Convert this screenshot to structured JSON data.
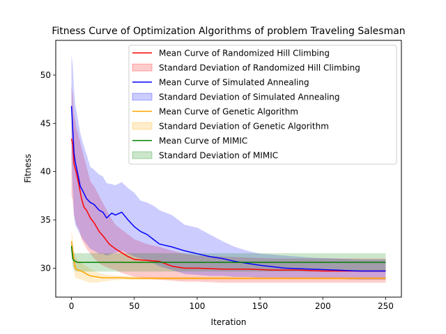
{
  "chart_data": {
    "type": "line",
    "title": "Fitness Curve of Optimization Algorithms of problem Traveling Salesman",
    "xlabel": "Iteration",
    "ylabel": "Fitness",
    "xlim": [
      -12.5,
      262.5
    ],
    "ylim": [
      27.0,
      53.6
    ],
    "xticks": [
      0,
      50,
      100,
      150,
      200,
      250
    ],
    "yticks": [
      30,
      35,
      40,
      45,
      50
    ],
    "grid": false,
    "legend_position": "top-right",
    "series": [
      {
        "name": "Mean Curve of Randomized Hill Climbing",
        "band_name": "Standard Deviation of Randomized Hill Climbing",
        "color": "#ff0000",
        "x": [
          0,
          1,
          2,
          4,
          6,
          8,
          10,
          12,
          15,
          18,
          22,
          26,
          30,
          35,
          40,
          45,
          50,
          60,
          70,
          80,
          90,
          100,
          120,
          140,
          160,
          180,
          200,
          220,
          250
        ],
        "mean": [
          43.4,
          42.8,
          40.8,
          39.8,
          38.6,
          37.2,
          36.3,
          36.0,
          35.2,
          34.7,
          33.8,
          33.2,
          32.5,
          32.0,
          31.6,
          31.2,
          30.9,
          30.8,
          30.7,
          30.2,
          30.0,
          30.0,
          29.9,
          29.9,
          29.8,
          29.8,
          29.7,
          29.7,
          29.7
        ],
        "upper": [
          49.0,
          48.0,
          46.0,
          44.5,
          43.5,
          42.5,
          41.5,
          40.5,
          39.0,
          38.5,
          37.5,
          36.5,
          35.5,
          34.5,
          34.0,
          33.5,
          33.0,
          32.5,
          32.2,
          31.8,
          31.5,
          31.3,
          31.2,
          31.1,
          31.0,
          31.0,
          31.0,
          31.0,
          31.0
        ],
        "lower": [
          37.5,
          37.0,
          35.5,
          34.5,
          34.0,
          33.0,
          32.5,
          32.0,
          31.5,
          31.0,
          30.5,
          30.2,
          30.0,
          29.8,
          29.5,
          29.3,
          29.1,
          28.9,
          28.8,
          28.7,
          28.6,
          28.6,
          28.5,
          28.5,
          28.5,
          28.5,
          28.5,
          28.5,
          28.5
        ]
      },
      {
        "name": "Mean Curve of Simulated Annealing",
        "band_name": "Standard Deviation of Simulated Annealing",
        "color": "#0000ff",
        "x": [
          0,
          1,
          2,
          3,
          5,
          7,
          9,
          12,
          15,
          18,
          22,
          25,
          28,
          32,
          35,
          40,
          45,
          50,
          55,
          60,
          65,
          70,
          80,
          90,
          100,
          110,
          120,
          130,
          140,
          150,
          170,
          190,
          210,
          230,
          250
        ],
        "mean": [
          46.8,
          44.5,
          42.0,
          41.0,
          39.8,
          38.5,
          38.0,
          37.2,
          36.8,
          36.6,
          36.0,
          35.8,
          35.2,
          35.7,
          35.5,
          35.8,
          35.0,
          34.3,
          33.8,
          33.5,
          33.0,
          32.5,
          32.2,
          31.8,
          31.5,
          31.2,
          31.0,
          30.7,
          30.5,
          30.3,
          30.0,
          29.9,
          29.8,
          29.7,
          29.7
        ],
        "upper": [
          52.1,
          51.0,
          48.5,
          47.0,
          45.5,
          44.0,
          43.0,
          41.8,
          40.5,
          40.2,
          39.7,
          39.5,
          38.8,
          38.7,
          38.6,
          38.9,
          38.3,
          37.8,
          37.0,
          36.8,
          36.5,
          36.0,
          35.5,
          34.5,
          34.2,
          33.5,
          32.8,
          32.2,
          31.8,
          31.5,
          31.3,
          31.1,
          31.0,
          30.9,
          30.9
        ],
        "lower": [
          41.5,
          38.0,
          35.5,
          34.5,
          34.0,
          33.5,
          33.0,
          32.5,
          32.0,
          31.8,
          31.5,
          31.5,
          31.3,
          31.5,
          31.6,
          31.8,
          31.5,
          31.2,
          31.0,
          30.8,
          30.5,
          30.2,
          29.8,
          29.4,
          29.3,
          29.2,
          29.2,
          29.1,
          29.1,
          29.0,
          29.0,
          28.9,
          28.9,
          28.8,
          28.8
        ]
      },
      {
        "name": "Mean Curve of Genetic Algorithm",
        "band_name": "Standard Deviation of Genetic Algorithm",
        "color": "#ffa500",
        "x": [
          0,
          1,
          2,
          3,
          5,
          8,
          12,
          15,
          20,
          25,
          30,
          40,
          50,
          75,
          100,
          150,
          200,
          250
        ],
        "mean": [
          32.8,
          31.8,
          30.8,
          30.0,
          29.8,
          29.7,
          29.4,
          29.2,
          29.1,
          29.0,
          29.0,
          29.0,
          28.95,
          28.95,
          28.95,
          28.95,
          28.95,
          28.95
        ],
        "upper": [
          34.0,
          33.0,
          32.0,
          31.2,
          30.8,
          30.5,
          30.2,
          29.9,
          29.6,
          29.4,
          29.3,
          29.2,
          29.15,
          29.1,
          29.1,
          29.1,
          29.1,
          29.1
        ],
        "lower": [
          31.6,
          30.6,
          29.8,
          29.0,
          28.9,
          28.8,
          28.6,
          28.5,
          28.5,
          28.6,
          28.7,
          28.8,
          28.8,
          28.8,
          28.8,
          28.8,
          28.8,
          28.8
        ]
      },
      {
        "name": "Mean Curve of MIMIC",
        "band_name": "Standard Deviation of MIMIC",
        "color": "#008000",
        "x": [
          0,
          1,
          2,
          3,
          5,
          8,
          10,
          20,
          50,
          100,
          150,
          200,
          250
        ],
        "mean": [
          32.3,
          31.0,
          30.8,
          30.7,
          30.6,
          30.6,
          30.6,
          30.6,
          30.6,
          30.6,
          30.6,
          30.6,
          30.6
        ],
        "upper": [
          32.6,
          31.8,
          31.6,
          31.55,
          31.55,
          31.55,
          31.55,
          31.55,
          31.55,
          31.55,
          31.55,
          31.55,
          31.55
        ],
        "lower": [
          32.0,
          30.2,
          29.9,
          29.7,
          29.65,
          29.65,
          29.65,
          29.65,
          29.65,
          29.65,
          29.65,
          29.65,
          29.65
        ]
      }
    ]
  }
}
